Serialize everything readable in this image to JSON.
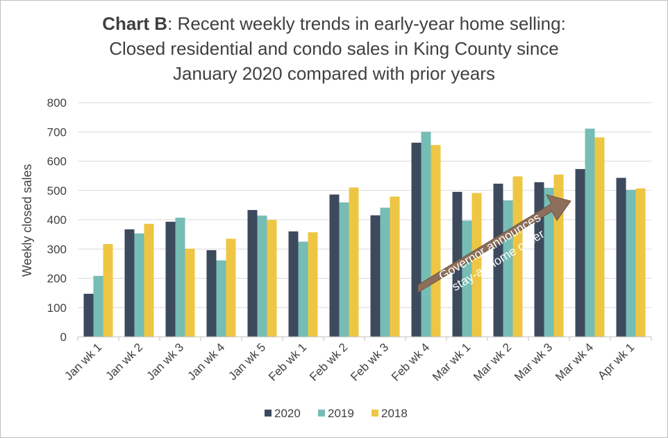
{
  "title": {
    "bold_part": "Chart B",
    "rest_line1": ": Recent weekly trends in early-year home selling:",
    "line2": "Closed residential and condo sales in King County since",
    "line3": "January 2020 compared with prior years"
  },
  "annotation": {
    "line1": "Governor announces",
    "line2": "stay-at-home order",
    "fill_color": "#8c6e5a"
  },
  "chart_data": {
    "type": "bar",
    "title": "Chart B: Recent weekly trends in early-year home selling: Closed residential and condo sales in King County since January 2020 compared with prior years",
    "xlabel": "",
    "ylabel": "Weekly closed sales",
    "ylim": [
      0,
      800
    ],
    "yticks": [
      0,
      100,
      200,
      300,
      400,
      500,
      600,
      700,
      800
    ],
    "grid": true,
    "legend_position": "bottom",
    "categories": [
      "Jan wk 1",
      "Jan wk 2",
      "Jan wk 3",
      "Jan wk 4",
      "Jan wk 5",
      "Feb wk 1",
      "Feb wk 2",
      "Feb wk 3",
      "Feb wk 4",
      "Mar wk 1",
      "Mar wk 2",
      "Mar wk 3",
      "Mar wk 4",
      "Apr wk 1"
    ],
    "series": [
      {
        "name": "2020",
        "color": "#3d4a5e",
        "values": [
          147,
          367,
          393,
          296,
          433,
          360,
          486,
          415,
          663,
          495,
          523,
          528,
          573,
          543
        ]
      },
      {
        "name": "2019",
        "color": "#76bdb5",
        "values": [
          208,
          353,
          407,
          261,
          414,
          325,
          459,
          441,
          700,
          397,
          466,
          509,
          711,
          502
        ]
      },
      {
        "name": "2018",
        "color": "#eec643",
        "values": [
          317,
          386,
          301,
          335,
          399,
          357,
          510,
          479,
          655,
          491,
          548,
          554,
          681,
          507
        ]
      }
    ]
  }
}
